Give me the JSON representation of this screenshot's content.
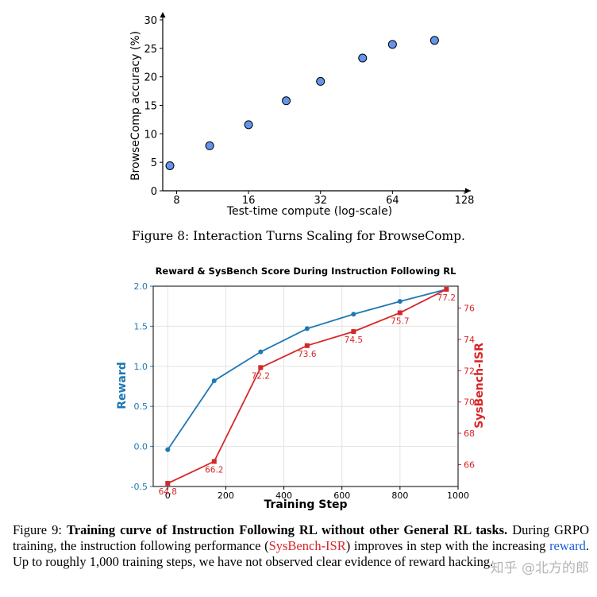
{
  "chart_data": [
    {
      "type": "scatter",
      "title": "",
      "xlabel": "Test-time compute (log-scale)",
      "ylabel": "BrowseComp accuracy (%)",
      "xscale": "log2",
      "xticks": [
        8,
        16,
        32,
        64,
        128
      ],
      "xtick_labels": [
        "8",
        "16",
        "32",
        "64",
        "128"
      ],
      "yticks": [
        0,
        5,
        10,
        15,
        20,
        25,
        30
      ],
      "ylim": [
        0,
        30
      ],
      "xlim": [
        7,
        128
      ],
      "points": [
        {
          "x": 7.5,
          "y": 4.4
        },
        {
          "x": 11,
          "y": 7.9
        },
        {
          "x": 16,
          "y": 11.6
        },
        {
          "x": 23,
          "y": 15.8
        },
        {
          "x": 32,
          "y": 19.2
        },
        {
          "x": 48,
          "y": 23.3
        },
        {
          "x": 64,
          "y": 25.7
        },
        {
          "x": 96,
          "y": 26.4
        }
      ]
    },
    {
      "type": "line",
      "title": "Reward & SysBench Score During Instruction Following RL",
      "xlabel": "Training Step",
      "ylabel_left": "Reward",
      "ylabel_right": "SysBench-ISR",
      "x": [
        0,
        160,
        320,
        480,
        640,
        800,
        960
      ],
      "xticks": [
        0,
        200,
        400,
        600,
        800,
        1000
      ],
      "xlim": [
        -50,
        1000
      ],
      "ylim_left": [
        -0.5,
        2.0
      ],
      "yticks_left": [
        "-0.5",
        "0.0",
        "0.5",
        "1.0",
        "1.5",
        "2.0"
      ],
      "ylim_right": [
        64.6,
        77.4
      ],
      "yticks_right": [
        66,
        68,
        70,
        72,
        74,
        76
      ],
      "grid": true,
      "series": [
        {
          "name": "Reward",
          "axis": "left",
          "color": "#1f77b4",
          "marker": "circle",
          "values": [
            -0.04,
            0.82,
            1.18,
            1.47,
            1.65,
            1.81,
            1.96
          ]
        },
        {
          "name": "SysBench-ISR",
          "axis": "right",
          "color": "#d62728",
          "marker": "square",
          "values": [
            64.8,
            66.2,
            72.2,
            73.6,
            74.5,
            75.7,
            77.2
          ],
          "labels": [
            "64.8",
            "66.2",
            "72.2",
            "73.6",
            "74.5",
            "75.7",
            "77.2"
          ]
        }
      ]
    }
  ],
  "captions": {
    "fig8": "Figure 8: Interaction Turns Scaling for BrowseComp.",
    "fig9_prefix": "Figure 9: ",
    "fig9_bold": "Training curve of Instruction Following RL without other General RL tasks.",
    "fig9_part1": " During GRPO training, the instruction following performance (",
    "fig9_isr": "SysBench-ISR",
    "fig9_part2": ") improves in step with the increasing ",
    "fig9_reward": "reward",
    "fig9_part3": ". Up to roughly 1,000 training steps, we have not observed clear evidence of reward hacking."
  },
  "watermark": "知乎 @北方的郎",
  "colors": {
    "reward": "#1f77b4",
    "isr": "#d62728",
    "scatter_fill": "#6495ed"
  }
}
